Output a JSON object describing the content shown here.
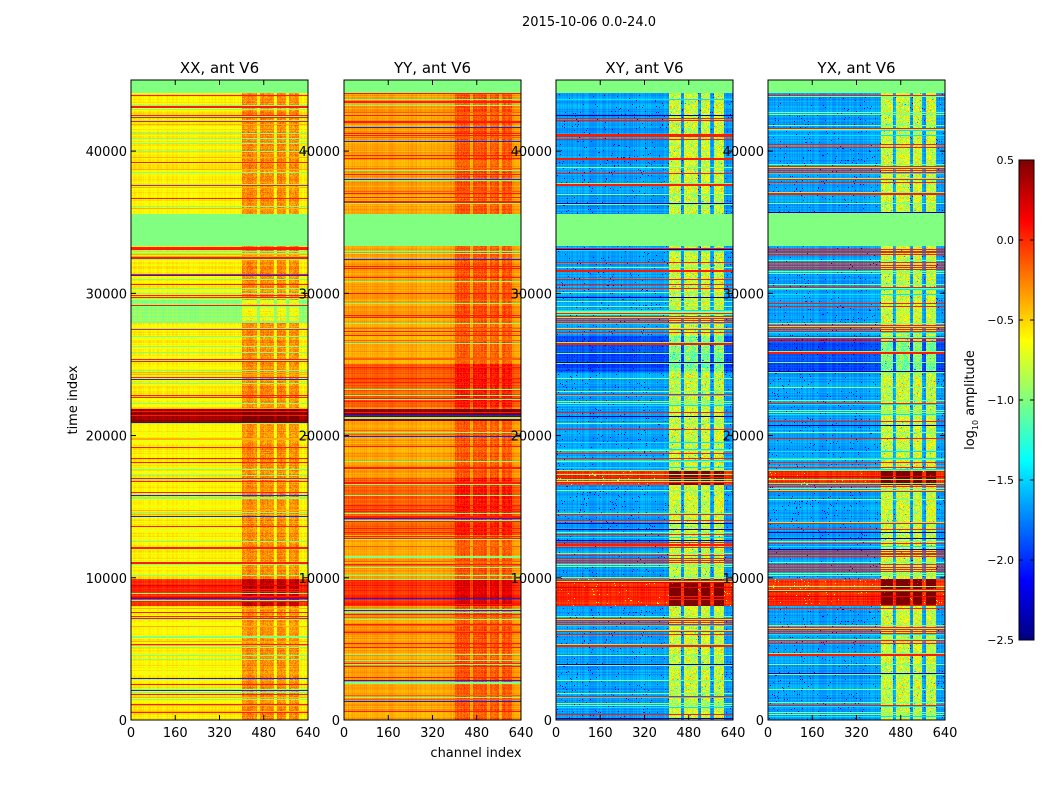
{
  "chart_data": {
    "type": "heatmap",
    "suptitle": "2015-10-06 0.0-24.0",
    "xlabel": "channel index",
    "ylabel": "time index",
    "xlim": [
      0,
      640
    ],
    "ylim": [
      0,
      45000
    ],
    "xticks": [
      0,
      160,
      320,
      480,
      640
    ],
    "yticks": [
      0,
      10000,
      20000,
      30000,
      40000
    ],
    "colorbar": {
      "label_prefix": "log",
      "label_sub": "10",
      "label_suffix": " amplitude",
      "cmap": "jet",
      "range": [
        -2.5,
        0.5
      ],
      "ticks": [
        0.5,
        0.0,
        -0.5,
        -1.0,
        -1.5,
        -2.0,
        -2.5
      ],
      "tick_labels": [
        "0.5",
        "0.0",
        "−0.5",
        "−1.0",
        "−1.5",
        "−2.0",
        "−2.5"
      ]
    },
    "panels": [
      {
        "title": "XX, ant V6",
        "base_level": -0.6,
        "channel_boost": {
          "ranges": [
            [
              400,
              455
            ],
            [
              465,
              515
            ],
            [
              525,
              560
            ],
            [
              570,
              605
            ]
          ],
          "delta": 0.35
        },
        "bands": [
          {
            "t0": 44100,
            "t1": 45000,
            "level": -1.0,
            "flat": true
          },
          {
            "t0": 33300,
            "t1": 35600,
            "level": -1.0,
            "flat": true
          },
          {
            "t0": 20900,
            "t1": 21900,
            "level": 0.45
          },
          {
            "t0": 8000,
            "t1": 9900,
            "level": 0.0
          },
          {
            "t0": 28000,
            "t1": 29500,
            "level": -0.95
          }
        ]
      },
      {
        "title": "YY, ant V6",
        "base_level": -0.35,
        "channel_boost": {
          "ranges": [
            [
              400,
              455
            ],
            [
              465,
              515
            ],
            [
              525,
              560
            ],
            [
              570,
              605
            ]
          ],
          "delta": 0.25
        },
        "bands": [
          {
            "t0": 44100,
            "t1": 45000,
            "level": -1.0,
            "flat": true
          },
          {
            "t0": 33300,
            "t1": 35600,
            "level": -1.0,
            "flat": true
          },
          {
            "t0": 21000,
            "t1": 21900,
            "level": 0.45
          },
          {
            "t0": 8000,
            "t1": 9900,
            "level": 0.0
          },
          {
            "t0": 13000,
            "t1": 17000,
            "level": -0.15
          },
          {
            "t0": 22000,
            "t1": 25000,
            "level": -0.15
          }
        ]
      },
      {
        "title": "XY, ant V6",
        "base_level": -1.65,
        "channel_boost": {
          "ranges": [
            [
              405,
              450
            ],
            [
              462,
              510
            ],
            [
              522,
              556
            ],
            [
              568,
              605
            ]
          ],
          "delta": 1.0
        },
        "bands": [
          {
            "t0": 44100,
            "t1": 45000,
            "level": -1.0,
            "flat": true
          },
          {
            "t0": 33300,
            "t1": 35600,
            "level": -1.0,
            "flat": true
          },
          {
            "t0": 8000,
            "t1": 9900,
            "level": 0.0
          },
          {
            "t0": 16500,
            "t1": 17600,
            "level": 0.0
          },
          {
            "t0": 24500,
            "t1": 27000,
            "level": -1.9
          }
        ]
      },
      {
        "title": "YX, ant V6",
        "base_level": -1.65,
        "channel_boost": {
          "ranges": [
            [
              405,
              450
            ],
            [
              462,
              510
            ],
            [
              522,
              556
            ],
            [
              568,
              605
            ]
          ],
          "delta": 1.0
        },
        "bands": [
          {
            "t0": 44100,
            "t1": 45000,
            "level": -1.0,
            "flat": true
          },
          {
            "t0": 33300,
            "t1": 35600,
            "level": -1.0,
            "flat": true
          },
          {
            "t0": 8000,
            "t1": 9900,
            "level": 0.0
          },
          {
            "t0": 16500,
            "t1": 17600,
            "level": 0.0
          },
          {
            "t0": 24500,
            "t1": 27000,
            "level": -1.9
          }
        ]
      }
    ]
  }
}
